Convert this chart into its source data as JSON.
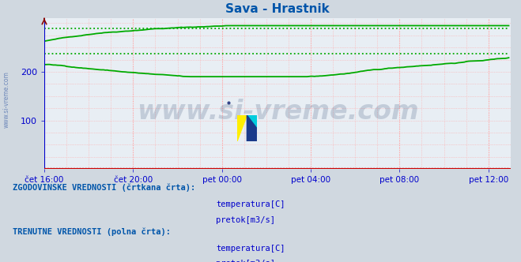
{
  "title": "Sava - Hrastnik",
  "title_color": "#0055aa",
  "bg_color": "#d0d8e0",
  "plot_bg_color": "#e8eef4",
  "grid_color_v": "#ffaaaa",
  "grid_color_h": "#ffaaaa",
  "axis_left_color": "#0000cc",
  "axis_bottom_color": "#cc0000",
  "tick_color": "#0000cc",
  "xlabel_ticks": [
    "čet 16:00",
    "čet 20:00",
    "pet 00:00",
    "pet 04:00",
    "pet 08:00",
    "pet 12:00"
  ],
  "yticks": [
    100,
    200
  ],
  "ylim": [
    0,
    310
  ],
  "xlim_max": 252,
  "pretok_hist_high": 289,
  "pretok_hist_low": 238,
  "temp_hist": 1.5,
  "temp_solid": 1.0,
  "watermark": "www.si-vreme.com",
  "watermark_color": "#1a3560",
  "watermark_alpha": 0.18,
  "watermark_fontsize": 24,
  "sidebar_text": "www.si-vreme.com",
  "sidebar_color": "#4466aa",
  "sidebar_alpha": 0.7,
  "legend_hist_title": "ZGODOVINSKE VREDNOSTI (črtkana črta):",
  "legend_curr_title": "TRENUTNE VREDNOSTI (polna črta):",
  "legend_label1": "temperatura[C]",
  "legend_label2": "pretok[m3/s]",
  "legend_color": "#0055aa",
  "legend_fontsize": 7.5,
  "color_red": "#cc0000",
  "color_green": "#00aa00",
  "color_green_bright": "#00cc00"
}
